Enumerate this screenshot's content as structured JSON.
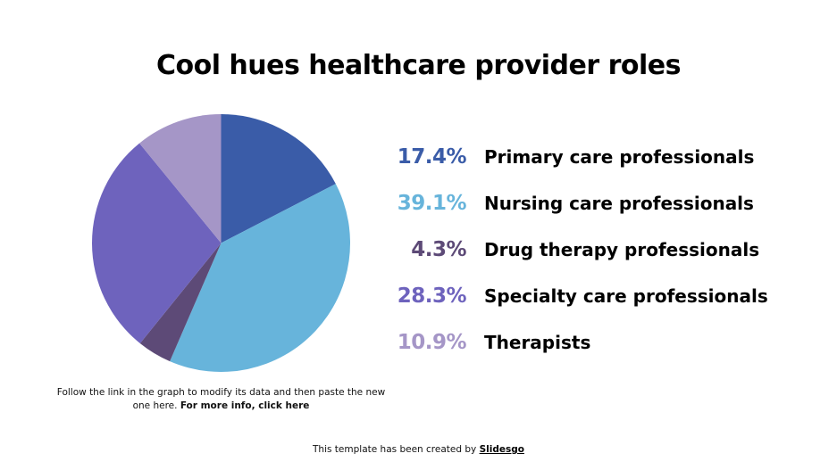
{
  "slide": {
    "title": "Cool hues healthcare provider roles",
    "note_text": "Follow the link in the graph to modify its data and then paste the new one here.",
    "note_link": "For more info, click here",
    "footer_text": "This template has been created by",
    "footer_link": "Slidesgo"
  },
  "legend": [
    {
      "pct": "17.4%",
      "label": "Primary care professionals",
      "color": "#3a5ca8"
    },
    {
      "pct": "39.1%",
      "label": "Nursing care professionals",
      "color": "#67b4db"
    },
    {
      "pct": "4.3%",
      "label": "Drug therapy professionals",
      "color": "#5d4a77"
    },
    {
      "pct": "28.3%",
      "label": "Specialty care professionals",
      "color": "#6e63bd"
    },
    {
      "pct": "10.9%",
      "label": "Therapists",
      "color": "#a596c7"
    }
  ],
  "chart_data": {
    "type": "pie",
    "title": "Cool hues healthcare provider roles",
    "categories": [
      "Primary care professionals",
      "Nursing care professionals",
      "Drug therapy professionals",
      "Specialty care professionals",
      "Therapists"
    ],
    "values": [
      17.4,
      39.1,
      4.3,
      28.3,
      10.9
    ],
    "colors": [
      "#3a5ca8",
      "#67b4db",
      "#5d4a77",
      "#6e63bd",
      "#a596c7"
    ],
    "start_angle": "12 o'clock",
    "direction": "clockwise",
    "legend_position": "right"
  }
}
